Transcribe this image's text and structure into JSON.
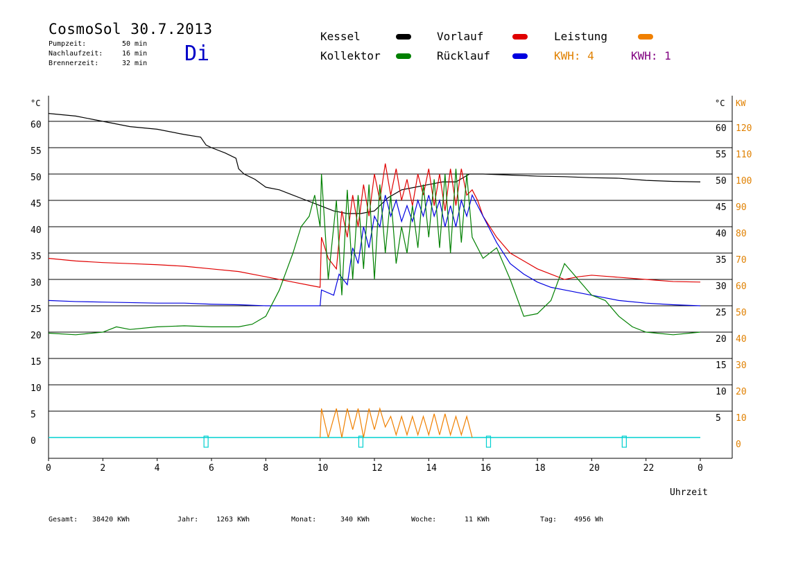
{
  "header": {
    "title": "CosmoSol 30.7.2013",
    "day": "Di",
    "stats": [
      {
        "label": "Pumpzeit:",
        "value": "50 min"
      },
      {
        "label": "Nachlaufzeit:",
        "value": "16 min"
      },
      {
        "label": "Brennerzeit:",
        "value": "32 min"
      }
    ]
  },
  "legend": {
    "kessel": {
      "label": "Kessel",
      "color": "#000000"
    },
    "vorlauf": {
      "label": "Vorlauf",
      "color": "#e00000"
    },
    "leistung": {
      "label": "Leistung",
      "color": "#f08000"
    },
    "kollektor": {
      "label": "Kollektor",
      "color": "#008000"
    },
    "ruecklauf": {
      "label": "Rücklauf",
      "color": "#0000e0"
    },
    "kwh_orange": {
      "label": "KWH: 4",
      "color": "#e08000"
    },
    "kwh_purple": {
      "label": "KWH: 1",
      "color": "#800080"
    }
  },
  "footer": {
    "gesamt": {
      "label": "Gesamt:",
      "value": "38420 KWh"
    },
    "jahr": {
      "label": "Jahr:",
      "value": "1263 KWh"
    },
    "monat": {
      "label": "Monat:",
      "value": "340 KWh"
    },
    "woche": {
      "label": "Woche:",
      "value": "11 KWh"
    },
    "tag": {
      "label": "Tag:",
      "value": "4956 Wh"
    }
  },
  "chart_data": {
    "type": "line",
    "xlabel": "Uhrzeit",
    "ylabel_left": "°C",
    "ylabel_right_temp": "°C",
    "ylabel_right_power": "KW",
    "xlim": [
      0,
      24
    ],
    "ylim": [
      0,
      65
    ],
    "x_ticks": [
      "0",
      "2",
      "4",
      "6",
      "8",
      "10",
      "12",
      "14",
      "16",
      "18",
      "20",
      "22",
      "0"
    ],
    "y_ticks_left": [
      0,
      5,
      10,
      15,
      20,
      25,
      30,
      35,
      40,
      45,
      50,
      55,
      60
    ],
    "y_ticks_right_temp": [
      5,
      10,
      15,
      20,
      25,
      30,
      35,
      40,
      45,
      50,
      55,
      60
    ],
    "y_ticks_right_power": [
      0,
      10,
      20,
      30,
      40,
      50,
      60,
      70,
      80,
      90,
      100,
      110,
      120
    ],
    "grid": true,
    "series": [
      {
        "name": "Kessel",
        "color": "#000000",
        "x": [
          0,
          1,
          2,
          3,
          4,
          5,
          5.6,
          5.8,
          6,
          6.5,
          6.9,
          7.0,
          7.2,
          7.6,
          8,
          8.5,
          9,
          9.5,
          10,
          10.5,
          11,
          11.5,
          12,
          12.5,
          13,
          13.5,
          14,
          14.5,
          15,
          15.5,
          15.8,
          16,
          17,
          18,
          19,
          20,
          21,
          22,
          23,
          24
        ],
        "y": [
          61.5,
          61,
          60,
          59,
          58.5,
          57.5,
          57,
          55.5,
          55,
          54,
          53,
          51,
          50,
          49,
          47.5,
          47,
          46,
          45,
          44,
          43,
          42.5,
          42.5,
          43,
          45.5,
          47,
          47.5,
          48,
          48.5,
          48.5,
          50,
          50,
          50,
          49.8,
          49.6,
          49.5,
          49.3,
          49.2,
          48.8,
          48.6,
          48.5
        ]
      },
      {
        "name": "Vorlauf",
        "color": "#e00000",
        "x": [
          0,
          1,
          2,
          3,
          4,
          5,
          6,
          7,
          8,
          9,
          9.7,
          10,
          10.05,
          10.3,
          10.6,
          10.8,
          11,
          11.2,
          11.4,
          11.6,
          11.8,
          12,
          12.2,
          12.4,
          12.6,
          12.8,
          13,
          13.2,
          13.4,
          13.6,
          13.8,
          14,
          14.2,
          14.4,
          14.6,
          14.8,
          15,
          15.2,
          15.4,
          15.6,
          15.8,
          16,
          16.5,
          17,
          17.5,
          18,
          18.5,
          19,
          19.5,
          20,
          20.5,
          21,
          22,
          23,
          24
        ],
        "y": [
          34,
          33.5,
          33.2,
          33,
          32.8,
          32.5,
          32,
          31.5,
          30.5,
          29.5,
          28.8,
          28.5,
          38,
          34,
          32,
          43,
          38,
          46,
          40,
          48,
          42,
          50,
          45,
          52,
          46,
          51,
          45,
          49,
          44,
          50,
          46,
          51,
          44,
          50,
          43,
          51,
          44,
          51,
          46,
          47,
          45,
          42,
          38,
          35,
          33.5,
          32,
          31,
          30,
          30.5,
          30.8,
          30.6,
          30.4,
          30,
          29.6,
          29.5
        ]
      },
      {
        "name": "Rücklauf",
        "color": "#0000e0",
        "x": [
          0,
          1,
          2,
          3,
          4,
          5,
          6,
          7,
          8,
          9,
          9.9,
          10,
          10.05,
          10.5,
          10.7,
          11,
          11.2,
          11.4,
          11.6,
          11.8,
          12,
          12.2,
          12.4,
          12.6,
          12.8,
          13,
          13.2,
          13.4,
          13.6,
          13.8,
          14,
          14.2,
          14.4,
          14.6,
          14.8,
          15,
          15.2,
          15.4,
          15.6,
          15.8,
          16,
          16.5,
          17,
          17.5,
          18,
          18.5,
          19,
          20,
          21,
          22,
          23,
          24
        ],
        "y": [
          26,
          25.8,
          25.7,
          25.6,
          25.5,
          25.5,
          25.3,
          25.2,
          25,
          25,
          25,
          25,
          28,
          27,
          31,
          29,
          36,
          33,
          40,
          36,
          42,
          40,
          46,
          42,
          45,
          41,
          44,
          41,
          45,
          42,
          46,
          42,
          45,
          40,
          44,
          40,
          45,
          42,
          46,
          44,
          42,
          37,
          33,
          31,
          29.5,
          28.5,
          28,
          27,
          26,
          25.5,
          25.2,
          25
        ]
      },
      {
        "name": "Kollektor",
        "color": "#008000",
        "x": [
          0,
          1,
          2,
          2.5,
          3,
          4,
          5,
          6,
          7,
          7.5,
          8,
          8.5,
          9,
          9.3,
          9.6,
          9.8,
          10,
          10.05,
          10.3,
          10.6,
          10.8,
          11,
          11.2,
          11.4,
          11.6,
          11.8,
          12,
          12.2,
          12.4,
          12.6,
          12.8,
          13,
          13.2,
          13.4,
          13.6,
          13.8,
          14,
          14.2,
          14.4,
          14.6,
          14.8,
          15,
          15.2,
          15.4,
          15.6,
          16,
          16.5,
          17,
          17.5,
          18,
          18.5,
          19,
          19.5,
          20,
          20.5,
          21,
          21.5,
          22,
          23,
          24
        ],
        "y": [
          19.8,
          19.5,
          20,
          21,
          20.5,
          21,
          21.2,
          21,
          21,
          21.5,
          23,
          28,
          35,
          40,
          42,
          46,
          40,
          50,
          30,
          45,
          27,
          47,
          30,
          46,
          32,
          48,
          30,
          48,
          35,
          46,
          33,
          40,
          35,
          44,
          36,
          48,
          38,
          49,
          36,
          50,
          35,
          51,
          37,
          50,
          38,
          34,
          36,
          30,
          23,
          23.5,
          26,
          33,
          30,
          27,
          26,
          23,
          21,
          20,
          19.5,
          20
        ]
      }
    ],
    "power": {
      "name": "Leistung",
      "color": "#f08000",
      "unit": "KW",
      "x": [
        10,
        10.05,
        10.3,
        10.6,
        10.8,
        11,
        11.2,
        11.4,
        11.6,
        11.8,
        12,
        12.2,
        12.4,
        12.6,
        12.8,
        13,
        13.2,
        13.4,
        13.6,
        13.8,
        14,
        14.2,
        14.4,
        14.6,
        14.8,
        15,
        15.2,
        15.4,
        15.6
      ],
      "y": [
        0,
        11,
        0,
        11,
        0,
        11,
        3,
        11,
        0,
        11,
        3,
        11,
        4,
        8,
        1,
        8,
        1,
        8,
        1,
        8,
        1,
        9,
        1,
        9,
        1,
        8,
        1,
        8,
        0
      ]
    },
    "burner_markers_hours": [
      5.8,
      11.5,
      16.2,
      21.2
    ]
  }
}
